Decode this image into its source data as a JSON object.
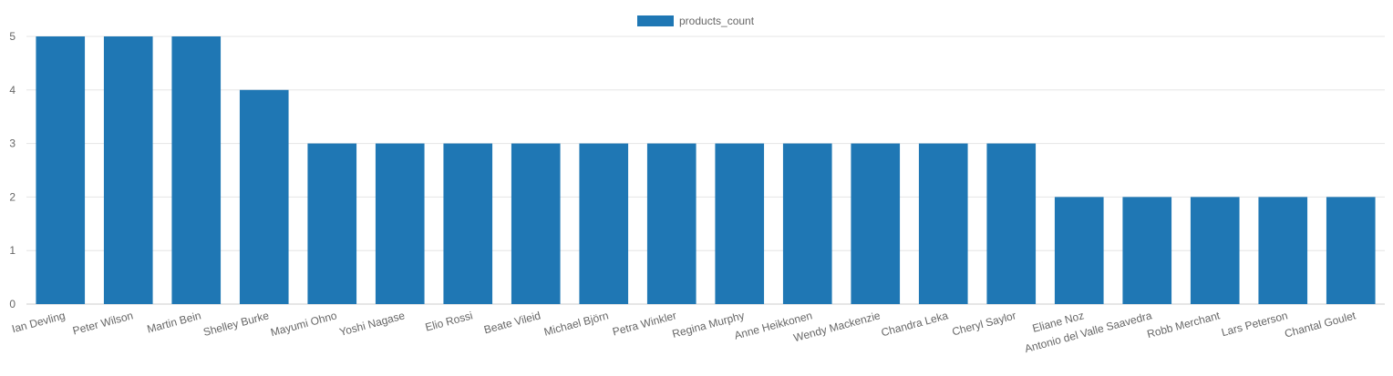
{
  "chart_data": {
    "type": "bar",
    "title": "",
    "xlabel": "",
    "ylabel": "",
    "ylim": [
      0,
      5
    ],
    "yticks": [
      0,
      1,
      2,
      3,
      4,
      5
    ],
    "grid": true,
    "legend_position": "top-center",
    "categories": [
      "Ian Devling",
      "Peter Wilson",
      "Martin Bein",
      "Shelley Burke",
      "Mayumi Ohno",
      "Yoshi Nagase",
      "Elio Rossi",
      "Beate Vileid",
      "Michael Björn",
      "Petra Winkler",
      "Regina Murphy",
      "Anne Heikkonen",
      "Wendy Mackenzie",
      "Chandra Leka",
      "Cheryl Saylor",
      "Eliane Noz",
      "Antonio del Valle Saavedra",
      "Robb Merchant",
      "Lars Peterson",
      "Chantal Goulet"
    ],
    "series": [
      {
        "name": "products_count",
        "color": "#1f77b4",
        "values": [
          5,
          5,
          5,
          4,
          3,
          3,
          3,
          3,
          3,
          3,
          3,
          3,
          3,
          3,
          3,
          2,
          2,
          2,
          2,
          2
        ]
      }
    ]
  }
}
